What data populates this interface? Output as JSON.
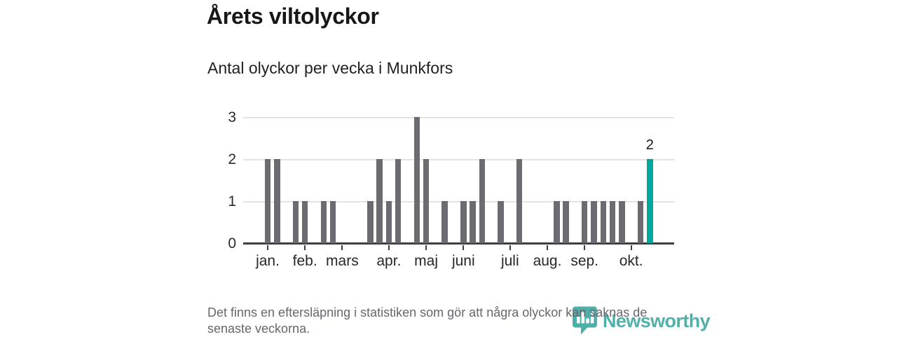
{
  "header": {
    "title": "Årets viltolyckor",
    "subtitle": "Antal olyckor per vecka i Munkfors"
  },
  "chart_data": {
    "type": "bar",
    "title": "Årets viltolyckor",
    "subtitle": "Antal olyckor per vecka i Munkfors",
    "x_unit": "vecka (januari–oktober)",
    "values": [
      2,
      2,
      0,
      1,
      1,
      0,
      1,
      1,
      0,
      0,
      0,
      1,
      2,
      1,
      2,
      0,
      3,
      2,
      0,
      1,
      0,
      1,
      1,
      2,
      0,
      1,
      0,
      2,
      0,
      0,
      0,
      1,
      1,
      0,
      1,
      1,
      1,
      1,
      1,
      0,
      1,
      2
    ],
    "highlight_last_bar": true,
    "annotation": {
      "bar_index": 41,
      "label": "2"
    },
    "ylim": [
      0,
      3
    ],
    "yticks": [
      0,
      1,
      2,
      3
    ],
    "grid": "horizontal",
    "legend": "none",
    "month_ticks": [
      {
        "index": 0,
        "label": "jan."
      },
      {
        "index": 4,
        "label": "feb."
      },
      {
        "index": 8,
        "label": "mars"
      },
      {
        "index": 13,
        "label": "apr."
      },
      {
        "index": 17,
        "label": "maj"
      },
      {
        "index": 21,
        "label": "juni"
      },
      {
        "index": 26,
        "label": "juli"
      },
      {
        "index": 30,
        "label": "aug."
      },
      {
        "index": 34,
        "label": "sep."
      },
      {
        "index": 39,
        "label": "okt."
      }
    ],
    "colors": {
      "bar": "#6b6b71",
      "highlight": "#00a79d",
      "axis": "#3d3d42",
      "gridline": "#e4e4e6"
    }
  },
  "footer": {
    "note_line1": "Det finns en eftersläpning i statistiken som gör att några olyckor kan saknas de",
    "note_line2": "senaste veckorna.",
    "brand": "Newsworthy",
    "brand_color": "#3ba6a0"
  }
}
